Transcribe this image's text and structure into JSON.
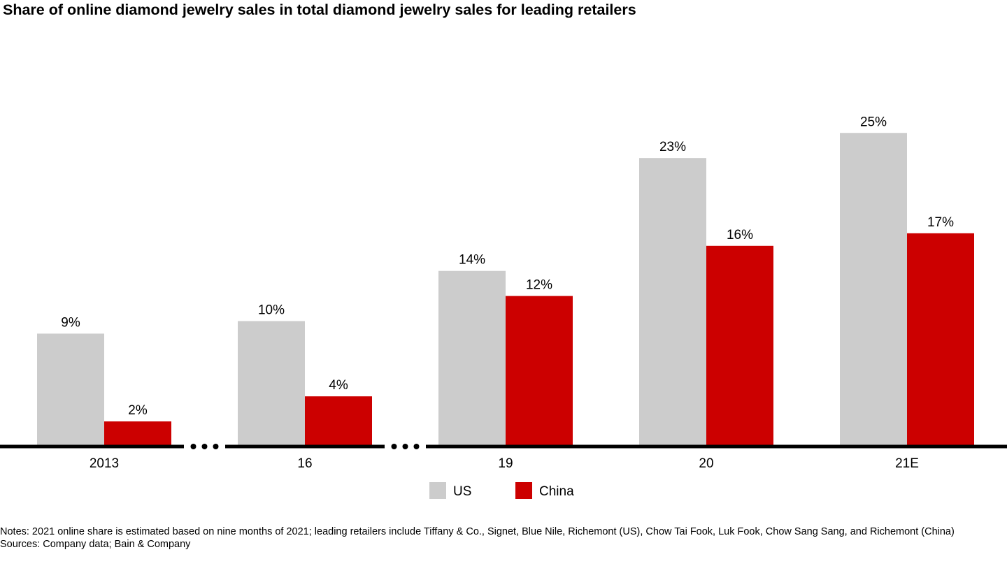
{
  "chart_data": {
    "type": "bar",
    "title": "Share of online diamond jewelry sales in total diamond jewelry sales for leading retailers",
    "categories": [
      "2013",
      "16",
      "19",
      "20",
      "21E"
    ],
    "series": [
      {
        "name": "US",
        "values": [
          9,
          10,
          14,
          23,
          25
        ],
        "labels": [
          "9%",
          "10%",
          "14%",
          "23%",
          "25%"
        ],
        "color": "#cccccc"
      },
      {
        "name": "China",
        "values": [
          2,
          4,
          12,
          16,
          17
        ],
        "labels": [
          "2%",
          "4%",
          "12%",
          "16%",
          "17%"
        ],
        "color": "#cc0000"
      }
    ],
    "xlabel": "",
    "ylabel": "",
    "ylim": [
      0,
      25
    ],
    "grid": false,
    "legend": "bottom-center",
    "axis_breaks_after": [
      "2013",
      "16"
    ]
  },
  "notes": "Notes: 2021 online share is estimated based on nine months of 2021; leading retailers include Tiffany & Co., Signet, Blue Nile, Richemont (US), Chow Tai Fook, Luk Fook, Chow Sang Sang, and Richemont (China)",
  "sources": "Sources: Company data; Bain & Company"
}
